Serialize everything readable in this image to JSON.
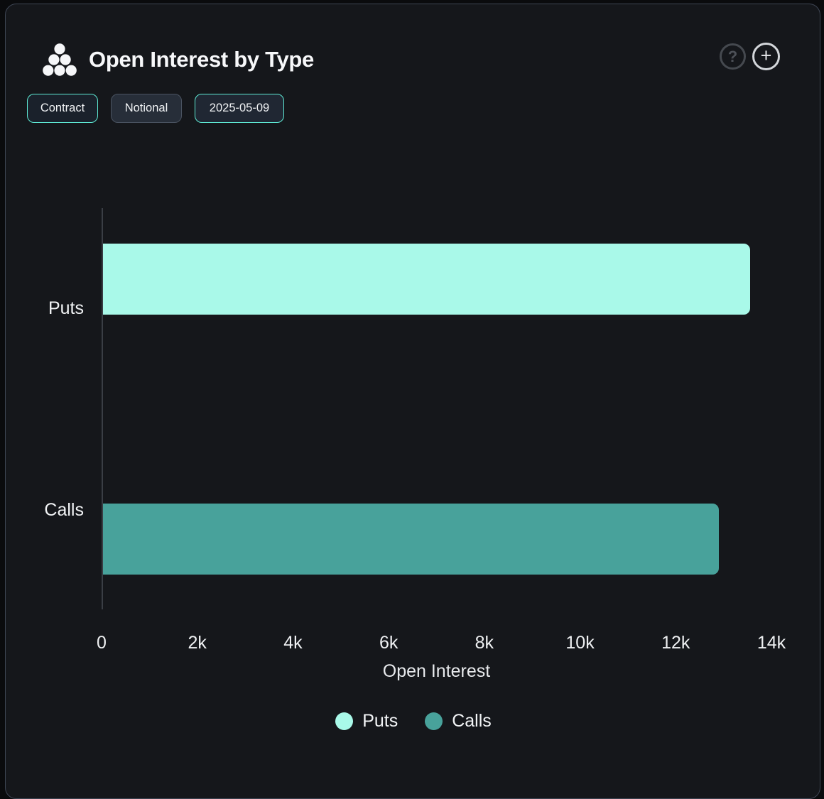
{
  "card": {
    "title": "Open Interest by Type",
    "header_icons": {
      "help_glyph": "?",
      "add_glyph": "+"
    },
    "chips": [
      {
        "label": "Contract",
        "active": true
      },
      {
        "label": "Notional",
        "active": false
      },
      {
        "label": "2025-05-09",
        "active": true
      }
    ]
  },
  "chart_data": {
    "type": "bar",
    "orientation": "horizontal",
    "categories": [
      "Puts",
      "Calls"
    ],
    "values": [
      13550,
      12900
    ],
    "colors": [
      "#a9f9e9",
      "#48a29b"
    ],
    "title": "Open Interest by Type",
    "xlabel": "Open Interest",
    "ylabel": "",
    "xlim": [
      0,
      14000
    ],
    "x_ticks": [
      "0",
      "2k",
      "4k",
      "6k",
      "8k",
      "10k",
      "12k",
      "14k"
    ],
    "x_tick_values": [
      0,
      2000,
      4000,
      6000,
      8000,
      10000,
      12000,
      14000
    ],
    "grid": false,
    "legend_position": "bottom",
    "legend": [
      {
        "label": "Puts",
        "color": "#a9f9e9"
      },
      {
        "label": "Calls",
        "color": "#48a29b"
      }
    ]
  },
  "colors": {
    "page_background": "#0a0b0d",
    "card_background": "#15171b",
    "card_border": "#3e4654",
    "accent_teal": "#5eead4",
    "axis_line": "#3a3e45"
  }
}
